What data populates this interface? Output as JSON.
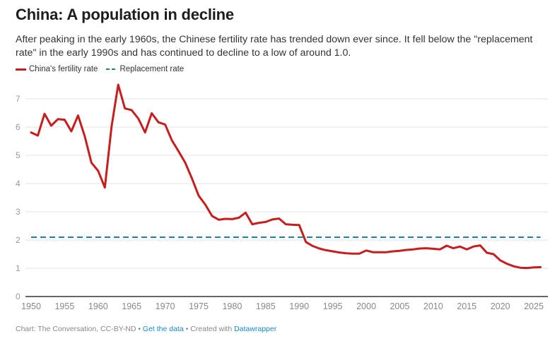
{
  "header": {
    "title": "China: A population in decline",
    "description": "After peaking in the early 1960s, the Chinese fertility rate has trended down ever since. It fell below the \"replacement rate\" in the early 1990s and has continued to decline to a low of around 1.0."
  },
  "legend": {
    "items": [
      {
        "label": "China's fertility rate",
        "style": "solid",
        "color": "#c71e1d"
      },
      {
        "label": "Replacement rate",
        "style": "dashed",
        "color": "#1d81a2"
      }
    ]
  },
  "footer": {
    "source": "Chart: The Conversation, CC-BY-ND",
    "sep1": " • ",
    "get_data": "Get the data",
    "sep2": " • Created with ",
    "tool": "Datawrapper"
  },
  "chart_data": {
    "type": "line",
    "title": "China: A population in decline",
    "xlabel": "",
    "ylabel": "",
    "xlim": [
      1950,
      2026
    ],
    "ylim": [
      0,
      7.5
    ],
    "grid": true,
    "legend_position": "top-left",
    "x_ticks": [
      1950,
      1955,
      1960,
      1965,
      1970,
      1975,
      1980,
      1985,
      1990,
      1995,
      2000,
      2005,
      2010,
      2015,
      2020,
      2025
    ],
    "y_ticks": [
      0,
      1,
      2,
      3,
      4,
      5,
      6,
      7
    ],
    "series": [
      {
        "name": "China's fertility rate",
        "color": "#c71e1d",
        "style": "solid",
        "x": [
          1950,
          1951,
          1952,
          1953,
          1954,
          1955,
          1956,
          1957,
          1958,
          1959,
          1960,
          1961,
          1962,
          1963,
          1964,
          1965,
          1966,
          1967,
          1968,
          1969,
          1970,
          1971,
          1972,
          1973,
          1974,
          1975,
          1976,
          1977,
          1978,
          1979,
          1980,
          1981,
          1982,
          1983,
          1984,
          1985,
          1986,
          1987,
          1988,
          1989,
          1990,
          1991,
          1992,
          1993,
          1994,
          1995,
          1996,
          1997,
          1998,
          1999,
          2000,
          2001,
          2002,
          2003,
          2004,
          2005,
          2006,
          2007,
          2008,
          2009,
          2010,
          2011,
          2012,
          2013,
          2014,
          2015,
          2016,
          2017,
          2018,
          2019,
          2020,
          2021,
          2022,
          2023,
          2024,
          2025,
          2026
        ],
        "values": [
          5.81,
          5.7,
          6.47,
          6.05,
          6.28,
          6.26,
          5.85,
          6.41,
          5.68,
          4.74,
          4.45,
          3.86,
          6.02,
          7.5,
          6.66,
          6.6,
          6.3,
          5.81,
          6.49,
          6.17,
          6.09,
          5.53,
          5.14,
          4.74,
          4.18,
          3.57,
          3.25,
          2.85,
          2.72,
          2.75,
          2.74,
          2.79,
          2.97,
          2.56,
          2.61,
          2.64,
          2.73,
          2.76,
          2.56,
          2.54,
          2.53,
          1.93,
          1.79,
          1.7,
          1.64,
          1.6,
          1.56,
          1.53,
          1.52,
          1.52,
          1.63,
          1.57,
          1.57,
          1.57,
          1.6,
          1.62,
          1.65,
          1.67,
          1.7,
          1.71,
          1.69,
          1.67,
          1.8,
          1.71,
          1.77,
          1.67,
          1.77,
          1.81,
          1.55,
          1.5,
          1.28,
          1.16,
          1.07,
          1.02,
          1.01,
          1.03,
          1.04
        ]
      },
      {
        "name": "Replacement rate",
        "color": "#1d81a2",
        "style": "dashed",
        "x": [
          1950,
          2026
        ],
        "values": [
          2.1,
          2.1
        ]
      }
    ]
  }
}
